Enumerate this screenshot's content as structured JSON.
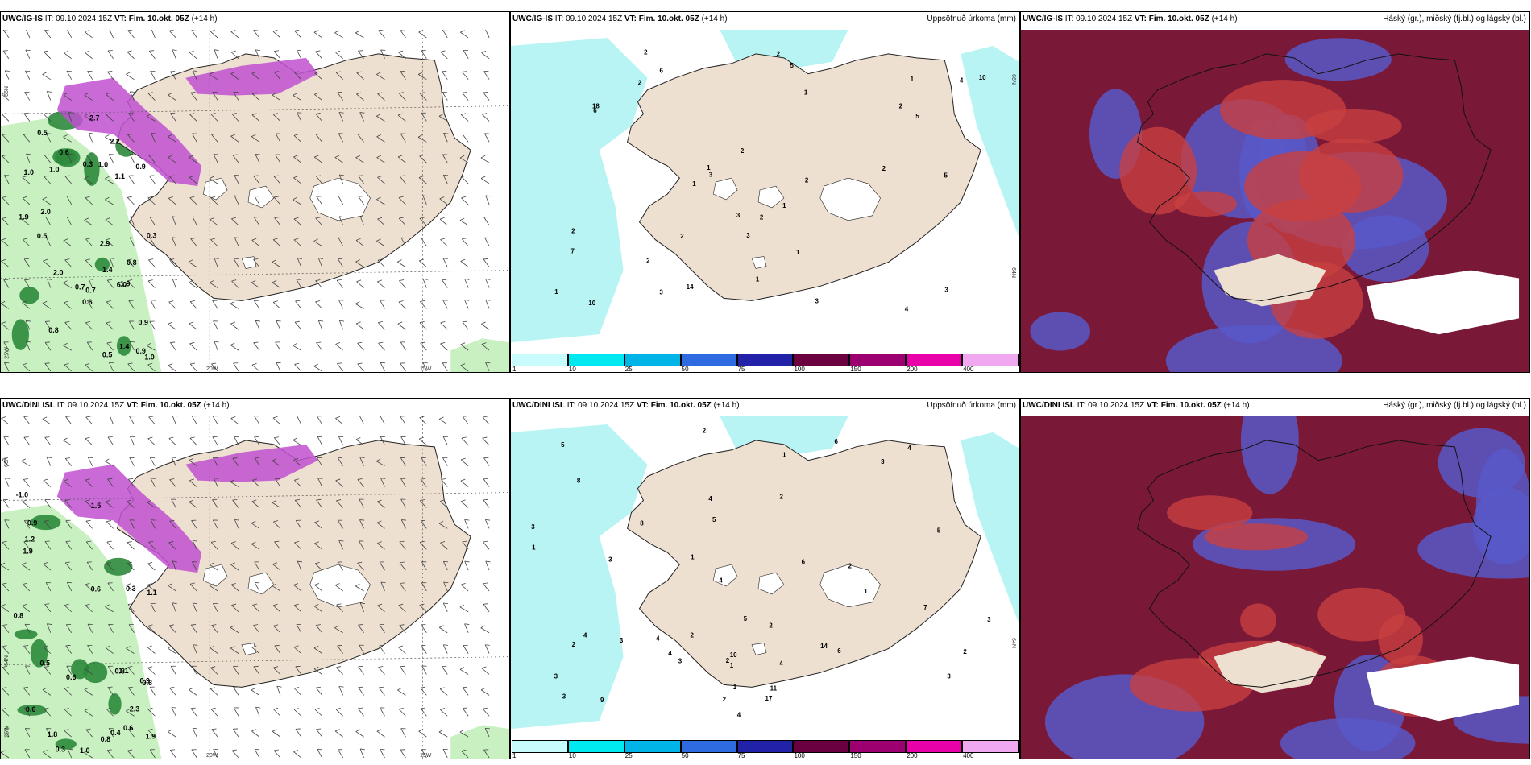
{
  "row1": {
    "wind": {
      "model": "UWC/IG-IS",
      "it_label": "IT:",
      "it": "09.10.2024 15Z",
      "vt_label": "VT:",
      "vt": "Fim. 10.okt. 05Z",
      "lead": "(+14 h)",
      "lat_labels": [
        "66N",
        "25W"
      ],
      "lon_labels": [
        "20W",
        "15W"
      ],
      "values": [
        "1.0",
        "0.5",
        "2.7",
        "2.0",
        "1.9",
        "0.3",
        "1.4",
        "0.9",
        "0.8",
        "0.5",
        "1.0",
        "0.7",
        "0.7",
        "0.9",
        "0.5",
        "1.0",
        "1.1",
        "0.6",
        "0.8",
        "0.9",
        "1.0",
        "1.4",
        "2.2",
        "2.0",
        "0.6",
        "0.3",
        "6.0",
        "1.9",
        "2.9"
      ]
    },
    "precip": {
      "model": "UWC/IG-IS",
      "it_label": "IT:",
      "it": "09.10.2024 15Z",
      "vt_label": "VT:",
      "vt": "Fim. 10.okt. 05Z",
      "lead": "(+14 h)",
      "right_title": "Uppsöfnuð úrkoma (mm)",
      "lat_labels": [
        "66N",
        "64N"
      ],
      "values": [
        "2",
        "5",
        "3",
        "4",
        "7",
        "6",
        "2",
        "3",
        "2",
        "4",
        "2",
        "6",
        "18",
        "10",
        "14",
        "5",
        "10",
        "5",
        "2",
        "3",
        "2",
        "1",
        "2",
        "2",
        "3",
        "3",
        "2",
        "1",
        "1",
        "1",
        "1",
        "3",
        "1",
        "2",
        "1",
        "1",
        "2"
      ]
    },
    "cloud": {
      "model": "UWC/IG-IS",
      "it_label": "IT:",
      "it": "09.10.2024 15Z",
      "vt_label": "VT:",
      "vt": "Fim. 10.okt. 05Z",
      "lead": "(+14 h)",
      "right_title": "Háský (gr.), miðský (fj.bl.) og lágský (bl.)"
    }
  },
  "row2": {
    "wind": {
      "model": "UWC/DINI ISL",
      "it_label": "IT:",
      "it": "09.10.2024 15Z",
      "vt_label": "VT:",
      "vt": "Fim. 10.okt. 05Z",
      "lead": "(+14 h)",
      "lat_labels": [
        "66N",
        "64N",
        "25W"
      ],
      "lon_labels": [
        "20W",
        "15W"
      ],
      "values": [
        "0.8",
        "0.6",
        "2.3",
        "1.0",
        "0.3",
        "0.6",
        "1.1",
        "1.9",
        "1.2",
        "0.3",
        "0.4",
        "-1.0",
        "1.1",
        "0.6",
        "0.8",
        "1.5",
        "1.9",
        "0.5",
        "0.9",
        "1.8",
        "0.9",
        "0.6",
        "0.8",
        "0.8"
      ]
    },
    "precip": {
      "model": "UWC/DINI ISL",
      "it_label": "IT:",
      "it": "09.10.2024 15Z",
      "vt_label": "VT:",
      "vt": "Fim. 10.okt. 05Z",
      "lead": "(+14 h)",
      "right_title": "Uppsöfnuð úrkoma (mm)",
      "lat_labels": [
        "64N"
      ],
      "values": [
        "1",
        "3",
        "4",
        "7",
        "6",
        "5",
        "3",
        "2",
        "4",
        "9",
        "11",
        "8",
        "14",
        "10",
        "4",
        "3",
        "4",
        "6",
        "5",
        "3",
        "6",
        "3",
        "4",
        "5",
        "2",
        "1",
        "2",
        "2",
        "3",
        "3",
        "2",
        "1",
        "1",
        "1",
        "2",
        "2",
        "3",
        "4",
        "4",
        "5",
        "8",
        "4",
        "17",
        "3",
        "2",
        "1",
        "2"
      ]
    },
    "cloud": {
      "model": "UWC/DINI ISL",
      "it_label": "IT:",
      "it": "09.10.2024 15Z",
      "vt_label": "VT:",
      "vt": "Fim. 10.okt. 05Z",
      "lead": "(+14 h)",
      "right_title": "Háský (gr.), miðský (fj.bl.) og lágský (bl.)"
    }
  },
  "colorbar": {
    "labels": [
      "1",
      "10",
      "25",
      "50",
      "75",
      "100",
      "150",
      "200",
      "400"
    ],
    "colors": [
      "#c8fbfb",
      "#00e8f0",
      "#00b4e8",
      "#2f6be0",
      "#2222a8",
      "#6a0040",
      "#9c0070",
      "#e800a8",
      "#f0a8f0"
    ]
  },
  "colors": {
    "land": "#eee0d0",
    "sea": "#ffffff",
    "glacier": "#ffffff",
    "precip_light": "#b8f4f4",
    "snow": "#c050d0",
    "rain": "#2c8a3c",
    "rain_light": "#c8f0c0",
    "cloud_high": "#7a1838",
    "cloud_mid": "#c84040",
    "cloud_low": "#5858c8"
  }
}
